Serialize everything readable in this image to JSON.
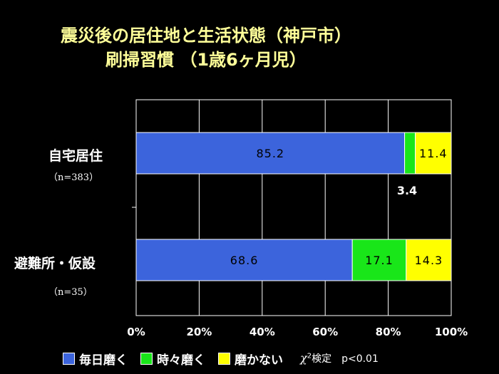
{
  "title_line1": "震災後の居住地と生活状態（神戸市）",
  "title_line2": "刷掃習慣 （1歳6ヶ月児）",
  "colors": {
    "every_day": "#3c64dc",
    "sometimes": "#19e619",
    "never": "#ffff00",
    "grid": "#ffffff"
  },
  "chart_data": {
    "type": "bar",
    "orientation": "horizontal",
    "stacked": true,
    "categories": [
      "自宅居住",
      "避難所・仮設"
    ],
    "category_notes": [
      "（n=383）",
      "（n=35）"
    ],
    "series": [
      {
        "name": "毎日磨く",
        "values": [
          85.2,
          68.6
        ]
      },
      {
        "name": "時々磨く",
        "values": [
          3.4,
          17.1
        ]
      },
      {
        "name": "磨かない",
        "values": [
          11.4,
          14.3
        ]
      }
    ],
    "data_labels": [
      [
        "85.2",
        "3.4",
        "11.4"
      ],
      [
        "68.6",
        "17.1",
        "14.3"
      ]
    ],
    "x_ticks": [
      "0%",
      "20%",
      "40%",
      "60%",
      "80%",
      "100%"
    ],
    "xlim": [
      0,
      100
    ],
    "grid": true,
    "legend_position": "bottom"
  },
  "legend": {
    "note_chi": "χ",
    "note_sup": "2",
    "note_text": "検定　p<0.01"
  }
}
